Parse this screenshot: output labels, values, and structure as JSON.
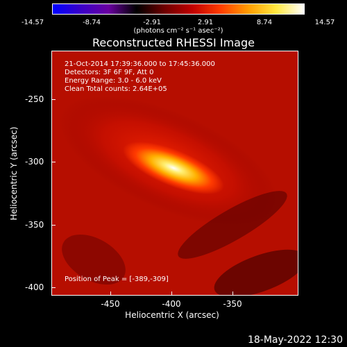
{
  "colorbar": {
    "ticks": [
      "-14.57",
      "-8.74",
      "-2.91",
      "2.91",
      "8.74",
      "14.57"
    ],
    "units": "(photons cm⁻² s⁻¹ asec⁻²)",
    "colors": [
      "#0000ff",
      "#3a00c8",
      "#6a00a0",
      "#000000",
      "#6e0000",
      "#c00000",
      "#ff3c00",
      "#ff9c00",
      "#ffe840",
      "#ffffff"
    ]
  },
  "plot": {
    "title": "Reconstructed RHESSI Image",
    "annotations": [
      "21-Oct-2014 17:39:36.000 to 17:45:36.000",
      "Detectors: 3F 6F 9F, Att 0",
      "Energy Range: 3.0 - 6.0 keV",
      "Clean    Total counts: 2.64E+05"
    ],
    "peak_label": "Position of Peak = [-389,-309]",
    "x_label": "Heliocentric X (arcsec)",
    "y_label": "Heliocentric Y (arcsec)",
    "x_ticks": [
      "-450",
      "-400",
      "-350"
    ],
    "y_ticks": [
      "-250",
      "-300",
      "-350",
      "-400"
    ]
  },
  "footer": {
    "date": "18-May-2022 12:30"
  }
}
